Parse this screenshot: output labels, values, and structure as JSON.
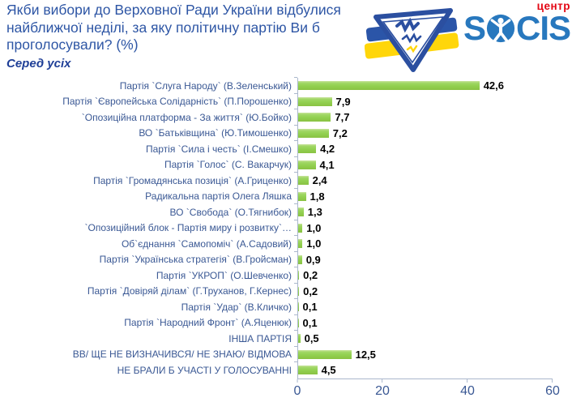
{
  "header": {
    "title_lines": [
      "Якби вибори до Верховної Ради України відбулися",
      "найближчої неділі, за яку політичну партію Ви б",
      "проголосували? (%)"
    ],
    "subtitle": "Серед усіх"
  },
  "logo": {
    "word_left": "S",
    "word_right": "CIS",
    "suffix": "центр",
    "brand_blue": "#2878be",
    "suffix_red": "#e30613",
    "flag_blue": "#2b55a8",
    "flag_yellow": "#ffd60a"
  },
  "chart_data": {
    "type": "bar",
    "orientation": "horizontal",
    "title": "Якби вибори до Верховної Ради України відбулися найближчої неділі, за яку політичну партію Ви б проголосували? (%)",
    "subtitle": "Серед усіх",
    "categories": [
      "Партія `Слуга Народу` (В.Зеленський)",
      "Партія `Європейська Солідарність` (П.Порошенко)",
      "`Опозиційна платформа - За життя` (Ю.Бойко)",
      "ВО `Батьківщина` (Ю.Тимошенко)",
      "Партія `Сила і честь` (І.Смешко)",
      "Партія `Голос` (С. Вакарчук)",
      "Партія `Громадянська позиція` (А.Гриценко)",
      "Радикальна партія Олега Ляшка",
      "ВО `Свобода` (О.Тягнибок)",
      "`Опозиційний блок - Партія миру і розвитку`…",
      "Об`єднання `Самопоміч` (А.Садовий)",
      "Партія `Українська стратегія` (В.Гройсман)",
      "Партія `УКРОП` (О.Шевченко)",
      "Партія `Довіряй ділам` (Г.Труханов, Г.Кернес)",
      "Партія `Удар` (В.Кличко)",
      "Партія `Народний Фронт` (А.Яценюк)",
      "ІНША ПАРТІЯ",
      "ВВ/ ЩЕ НЕ ВИЗНАЧИВСЯ/ НЕ ЗНАЮ/ ВІДМОВА",
      "НЕ БРАЛИ Б УЧАСТІ У ГОЛОСУВАННІ"
    ],
    "values": [
      42.6,
      7.9,
      7.7,
      7.2,
      4.2,
      4.1,
      2.4,
      1.8,
      1.3,
      1.0,
      1.0,
      0.9,
      0.2,
      0.2,
      0.1,
      0.1,
      0.5,
      12.5,
      4.5
    ],
    "value_labels": [
      "42,6",
      "7,9",
      "7,7",
      "7,2",
      "4,2",
      "4,1",
      "2,4",
      "1,8",
      "1,3",
      "1,0",
      "1,0",
      "0,9",
      "0,2",
      "0,2",
      "0,1",
      "0,1",
      "0,5",
      "12,5",
      "4,5"
    ],
    "xlim": [
      0,
      60
    ],
    "x_ticks": [
      0,
      20,
      40,
      60
    ],
    "x_tick_labels": [
      "0",
      "20",
      "40",
      "60"
    ],
    "bar_color": "#92d050",
    "label_color": "#3a5894",
    "grid": false,
    "legend": null
  }
}
